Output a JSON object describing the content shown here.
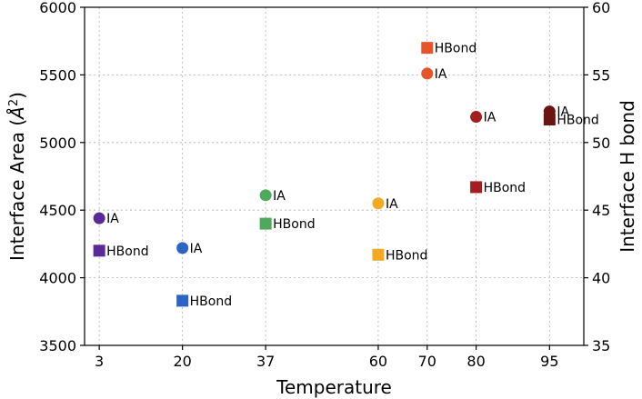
{
  "chart_data": {
    "type": "scatter",
    "title": "",
    "xlabel": "Temperature",
    "ylabel": "Interface Area (Å²)",
    "ylabel_parts": {
      "text": "Interface Area (",
      "symbol": "Å",
      "sup": "2",
      "close": ")"
    },
    "y2label": "Interface H bond",
    "xlim": [
      0,
      102
    ],
    "ylim": [
      3500,
      6000
    ],
    "y2lim": [
      35,
      60
    ],
    "xticks": [
      3,
      20,
      37,
      60,
      70,
      80,
      95
    ],
    "xtick_labels": [
      "3",
      "20",
      "37",
      "60",
      "70",
      "80",
      "95"
    ],
    "yticks": [
      3500,
      4000,
      4500,
      5000,
      5500,
      6000
    ],
    "ytick_labels": [
      "3500",
      "4000",
      "4500",
      "5000",
      "5500",
      "6000"
    ],
    "y2ticks": [
      35,
      40,
      45,
      50,
      55,
      60
    ],
    "y2tick_labels": [
      "35",
      "40",
      "45",
      "50",
      "55",
      "60"
    ],
    "grid": true,
    "series": [
      {
        "name": "IA",
        "axis": "left",
        "marker": "circle",
        "points": [
          {
            "x": 3,
            "y": 4440,
            "color": "#5b2a98",
            "label": "IA"
          },
          {
            "x": 20,
            "y": 4220,
            "color": "#2b64c4",
            "label": "IA"
          },
          {
            "x": 37,
            "y": 4610,
            "color": "#4caa5a",
            "label": "IA"
          },
          {
            "x": 60,
            "y": 4550,
            "color": "#f2aa22",
            "label": "IA"
          },
          {
            "x": 70,
            "y": 5510,
            "color": "#e8542a",
            "label": "IA"
          },
          {
            "x": 80,
            "y": 5190,
            "color": "#a31f1f",
            "label": "IA"
          },
          {
            "x": 95,
            "y": 5230,
            "color": "#6b1510",
            "label": "IA"
          }
        ]
      },
      {
        "name": "HBond",
        "axis": "right",
        "marker": "square",
        "points": [
          {
            "x": 3,
            "y": 42,
            "color": "#5b2a98",
            "label": "HBond"
          },
          {
            "x": 20,
            "y": 38.3,
            "color": "#2b64c4",
            "label": "HBond"
          },
          {
            "x": 37,
            "y": 44,
            "color": "#4caa5a",
            "label": "HBond"
          },
          {
            "x": 60,
            "y": 41.7,
            "color": "#f2aa22",
            "label": "HBond"
          },
          {
            "x": 70,
            "y": 57,
            "color": "#e8542a",
            "label": "HBond"
          },
          {
            "x": 80,
            "y": 46.7,
            "color": "#a31f1f",
            "label": "HBond"
          },
          {
            "x": 95,
            "y": 51.7,
            "color": "#6b1510",
            "label": "HBond"
          }
        ]
      }
    ]
  }
}
